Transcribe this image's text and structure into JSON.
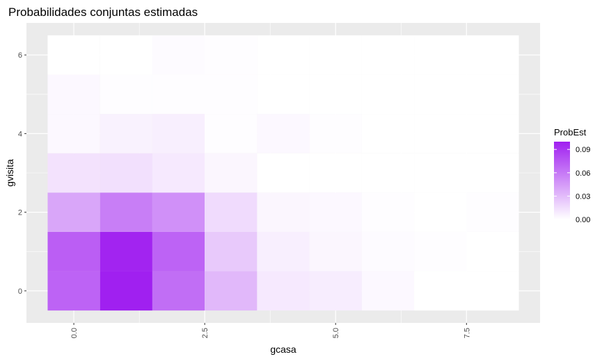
{
  "chart_data": {
    "type": "heatmap",
    "title": "Probabilidades conjuntas estimadas",
    "xlabel": "gcasa",
    "ylabel": "gvisita",
    "xlim": [
      -0.5,
      8.5
    ],
    "ylim": [
      -0.5,
      6.5
    ],
    "x_ticks": [
      0,
      2.5,
      5,
      7.5
    ],
    "x_tick_labels": [
      "0.0",
      "2.5",
      "5.0",
      "7.5"
    ],
    "y_ticks": [
      0,
      2,
      4,
      6
    ],
    "y_tick_labels": [
      "0",
      "2",
      "4",
      "6"
    ],
    "grid": true,
    "x": [
      0,
      1,
      2,
      3,
      4,
      5,
      6,
      7,
      8
    ],
    "y": [
      0,
      1,
      2,
      3,
      4,
      5,
      6
    ],
    "values": [
      [
        0.07,
        0.1,
        0.065,
        0.032,
        0.01,
        0.008,
        0.003,
        0.0,
        0.0
      ],
      [
        0.072,
        0.098,
        0.07,
        0.024,
        0.007,
        0.004,
        0.002,
        0.001,
        0.0
      ],
      [
        0.04,
        0.058,
        0.05,
        0.016,
        0.004,
        0.003,
        0.001,
        0.0,
        0.001
      ],
      [
        0.013,
        0.014,
        0.01,
        0.004,
        0.0,
        0.0,
        0.0,
        0.0,
        0.0
      ],
      [
        0.003,
        0.006,
        0.007,
        0.001,
        0.003,
        0.001,
        0.0,
        0.0,
        0.0
      ],
      [
        0.003,
        0.001,
        0.001,
        0.001,
        0.0,
        0.0,
        0.0,
        0.0,
        0.0
      ],
      [
        0.0,
        0.0,
        0.002,
        0.001,
        0.0,
        0.0,
        0.0,
        0.0,
        0.0
      ]
    ],
    "legend": {
      "title": "ProbEst",
      "position": "right",
      "breaks": [
        0.0,
        0.03,
        0.06,
        0.09
      ],
      "labels": [
        "0.00",
        "0.03",
        "0.06",
        "0.09"
      ],
      "range": [
        0,
        0.1
      ],
      "low_color": "#ffffff",
      "high_color": "#a020f0"
    }
  }
}
